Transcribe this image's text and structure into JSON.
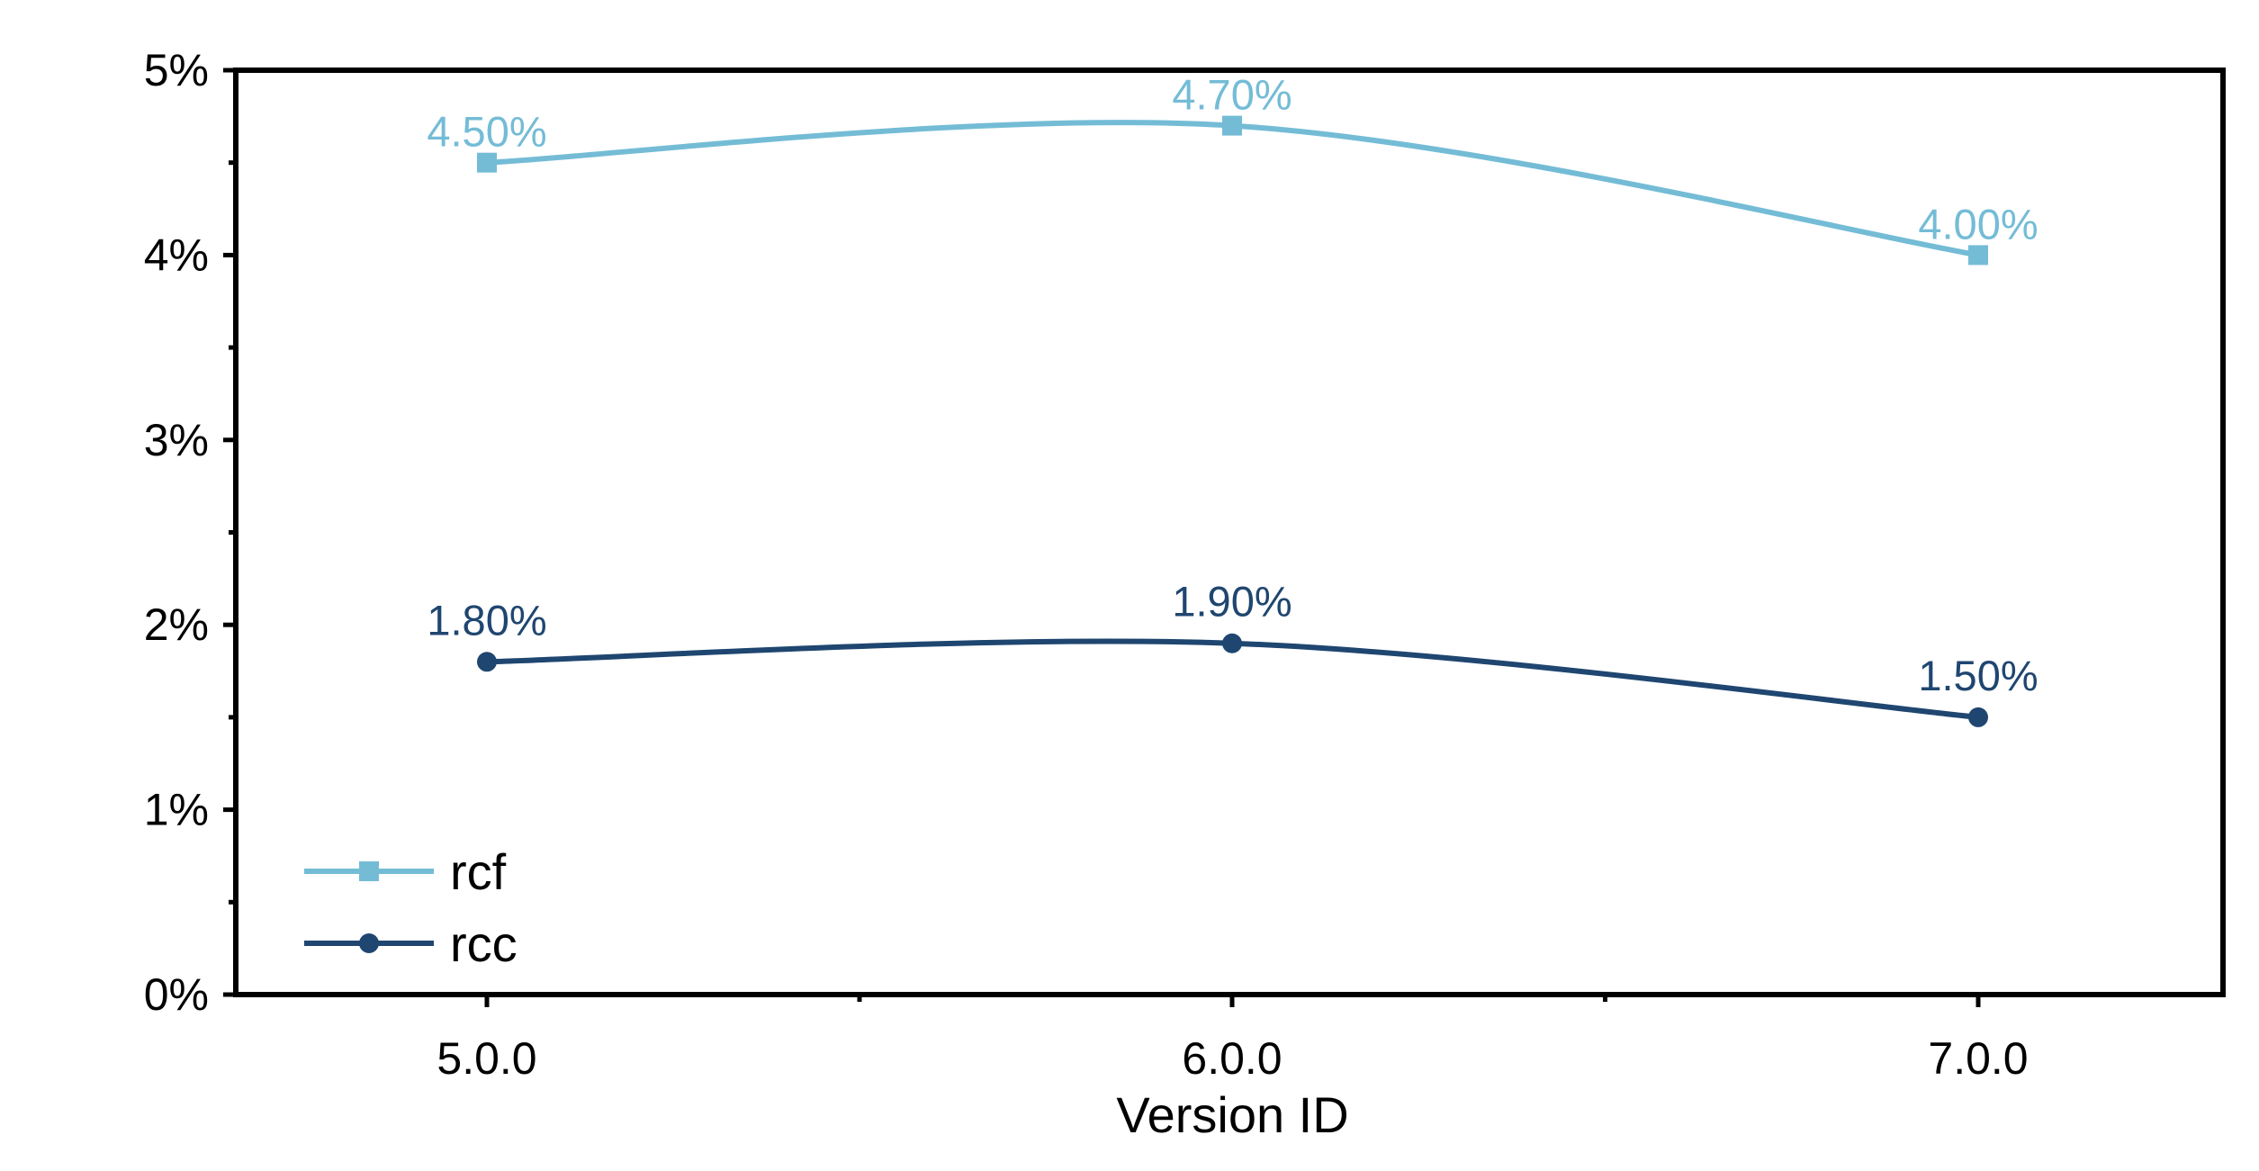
{
  "chart_data": {
    "type": "line",
    "title": "",
    "xlabel": "Version ID",
    "ylabel": "",
    "categories": [
      "5.0.0",
      "6.0.0",
      "7.0.0"
    ],
    "yticks": [
      "0%",
      "1%",
      "2%",
      "3%",
      "4%",
      "5%"
    ],
    "ylim": [
      0,
      5
    ],
    "grid": false,
    "legend_position": "bottom-left",
    "series": [
      {
        "name": "rcf",
        "values": [
          4.5,
          4.7,
          4.0
        ],
        "labels": [
          "4.50%",
          "4.70%",
          "4.00%"
        ],
        "color": "#74BCD6",
        "marker": "square",
        "smooth": true
      },
      {
        "name": "rcc",
        "values": [
          1.8,
          1.9,
          1.5
        ],
        "labels": [
          "1.80%",
          "1.90%",
          "1.50%"
        ],
        "color": "#1F4670",
        "marker": "circle",
        "smooth": true
      }
    ]
  }
}
